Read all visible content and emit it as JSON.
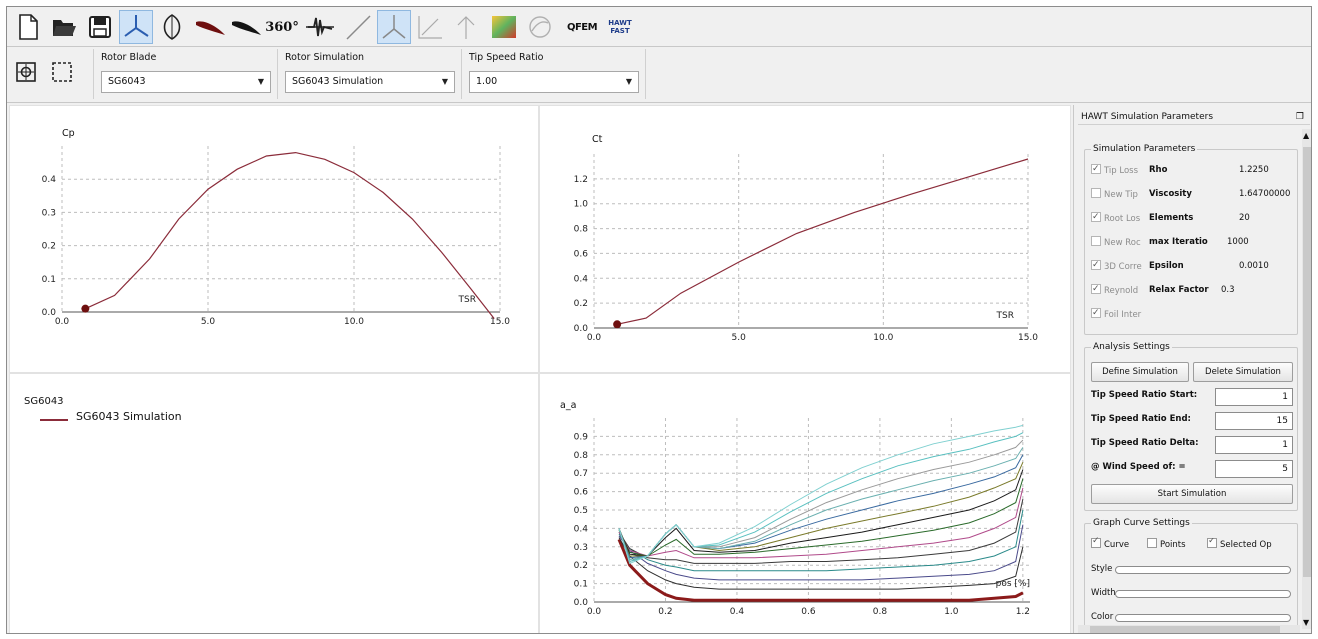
{
  "toolbar": {
    "text_360": "360°",
    "qfem_label": "QFEM",
    "hawt_fast_label": "HAWT FAST"
  },
  "selectors": {
    "rotor_blade": {
      "label": "Rotor Blade",
      "value": "SG6043"
    },
    "rotor_simulation": {
      "label": "Rotor Simulation",
      "value": "SG6043 Simulation"
    },
    "tip_speed_ratio": {
      "label": "Tip Speed Ratio",
      "value": "1.00"
    }
  },
  "graphs": {
    "cp": {
      "title": "Cp",
      "xlabel": "TSR"
    },
    "ct": {
      "title": "Ct",
      "xlabel": "TSR"
    },
    "legend": {
      "blade": "SG6043",
      "simulation": "SG6043 Simulation"
    },
    "aa": {
      "title": "a_a",
      "xlabel": "pos [%]"
    }
  },
  "chart_data": [
    {
      "type": "line",
      "title": "Cp",
      "xlabel": "TSR",
      "ylabel": "",
      "xlim": [
        0,
        15
      ],
      "ylim": [
        0,
        0.5
      ],
      "xticks": [
        "0.0",
        "5.0",
        "10.0",
        "15.0"
      ],
      "yticks": [
        "0.0",
        "0.1",
        "0.2",
        "0.3",
        "0.4"
      ],
      "series": [
        {
          "name": "SG6043 Simulation",
          "color": "#8b2c3a",
          "x": [
            0.8,
            1.8,
            3.0,
            4.0,
            5.0,
            6.0,
            7.0,
            8.0,
            9.0,
            10.0,
            11.0,
            12.0,
            13.0,
            14.0,
            14.8
          ],
          "y": [
            0.01,
            0.05,
            0.16,
            0.28,
            0.37,
            0.43,
            0.47,
            0.48,
            0.46,
            0.42,
            0.36,
            0.28,
            0.18,
            0.07,
            -0.02
          ]
        }
      ],
      "marker": {
        "x": 0.8,
        "y": 0.01
      }
    },
    {
      "type": "line",
      "title": "Ct",
      "xlabel": "TSR",
      "ylabel": "",
      "xlim": [
        0,
        15
      ],
      "ylim": [
        0,
        1.4
      ],
      "xticks": [
        "0.0",
        "5.0",
        "10.0",
        "15.0"
      ],
      "yticks": [
        "0.0",
        "0.2",
        "0.4",
        "0.6",
        "0.8",
        "1.0",
        "1.2"
      ],
      "series": [
        {
          "name": "SG6043 Simulation",
          "color": "#8b2c3a",
          "x": [
            0.8,
            1.8,
            3.0,
            5.0,
            7.0,
            9.0,
            11.0,
            13.0,
            15.0
          ],
          "y": [
            0.03,
            0.08,
            0.28,
            0.53,
            0.76,
            0.93,
            1.08,
            1.22,
            1.36
          ]
        }
      ],
      "marker": {
        "x": 0.8,
        "y": 0.03
      }
    },
    {
      "type": "line",
      "title": "a_a",
      "xlabel": "pos [%]",
      "ylabel": "",
      "xlim": [
        0,
        1.22
      ],
      "ylim": [
        0,
        1.0
      ],
      "xticks": [
        "0.0",
        "0.2",
        "0.4",
        "0.6",
        "0.8",
        "1.0",
        "1.2"
      ],
      "yticks": [
        "0.0",
        "0.1",
        "0.2",
        "0.3",
        "0.4",
        "0.5",
        "0.6",
        "0.7",
        "0.8",
        "0.9"
      ],
      "x": [
        0.07,
        0.1,
        0.15,
        0.2,
        0.23,
        0.28,
        0.35,
        0.45,
        0.55,
        0.65,
        0.75,
        0.85,
        0.95,
        1.05,
        1.12,
        1.18,
        1.2
      ],
      "series": [
        {
          "color": "#8b1a1a",
          "values": [
            0.34,
            0.2,
            0.1,
            0.04,
            0.02,
            0.01,
            0.01,
            0.01,
            0.01,
            0.01,
            0.01,
            0.01,
            0.01,
            0.01,
            0.02,
            0.03,
            0.05
          ]
        },
        {
          "color": "#2e2e2e",
          "values": [
            0.35,
            0.25,
            0.17,
            0.12,
            0.1,
            0.08,
            0.07,
            0.07,
            0.07,
            0.07,
            0.07,
            0.07,
            0.08,
            0.09,
            0.1,
            0.14,
            0.3
          ]
        },
        {
          "color": "#4a4a8a",
          "values": [
            0.36,
            0.28,
            0.21,
            0.17,
            0.15,
            0.13,
            0.12,
            0.12,
            0.12,
            0.12,
            0.12,
            0.13,
            0.14,
            0.15,
            0.17,
            0.22,
            0.42
          ]
        },
        {
          "color": "#2a8a8a",
          "values": [
            0.37,
            0.29,
            0.23,
            0.2,
            0.19,
            0.17,
            0.17,
            0.17,
            0.17,
            0.17,
            0.18,
            0.19,
            0.2,
            0.22,
            0.25,
            0.3,
            0.5
          ]
        },
        {
          "color": "#3a3a3a",
          "values": [
            0.38,
            0.29,
            0.24,
            0.23,
            0.23,
            0.21,
            0.21,
            0.21,
            0.22,
            0.22,
            0.23,
            0.24,
            0.26,
            0.28,
            0.32,
            0.38,
            0.56
          ]
        },
        {
          "color": "#b04a8a",
          "values": [
            0.38,
            0.28,
            0.25,
            0.27,
            0.28,
            0.24,
            0.24,
            0.24,
            0.25,
            0.26,
            0.28,
            0.3,
            0.32,
            0.35,
            0.4,
            0.46,
            0.62
          ]
        },
        {
          "color": "#2a6a2a",
          "values": [
            0.39,
            0.27,
            0.25,
            0.31,
            0.34,
            0.26,
            0.26,
            0.27,
            0.29,
            0.31,
            0.33,
            0.36,
            0.39,
            0.43,
            0.48,
            0.54,
            0.67
          ]
        },
        {
          "color": "#1a1a1a",
          "values": [
            0.4,
            0.26,
            0.25,
            0.35,
            0.4,
            0.28,
            0.27,
            0.28,
            0.32,
            0.35,
            0.38,
            0.42,
            0.46,
            0.5,
            0.55,
            0.61,
            0.72
          ]
        },
        {
          "color": "#7a7a2a",
          "values": [
            0.4,
            0.25,
            0.25,
            0.37,
            0.42,
            0.3,
            0.28,
            0.3,
            0.35,
            0.4,
            0.44,
            0.48,
            0.52,
            0.57,
            0.62,
            0.67,
            0.76
          ]
        },
        {
          "color": "#3a6aa0",
          "values": [
            0.4,
            0.24,
            0.25,
            0.37,
            0.42,
            0.3,
            0.29,
            0.32,
            0.39,
            0.45,
            0.5,
            0.55,
            0.59,
            0.64,
            0.68,
            0.73,
            0.8
          ]
        },
        {
          "color": "#6ab0b0",
          "values": [
            0.4,
            0.23,
            0.25,
            0.37,
            0.42,
            0.3,
            0.29,
            0.33,
            0.42,
            0.5,
            0.56,
            0.61,
            0.66,
            0.7,
            0.74,
            0.78,
            0.84
          ]
        },
        {
          "color": "#9a9a9a",
          "values": [
            0.4,
            0.22,
            0.25,
            0.37,
            0.42,
            0.3,
            0.3,
            0.35,
            0.45,
            0.54,
            0.61,
            0.67,
            0.72,
            0.76,
            0.8,
            0.84,
            0.88
          ]
        },
        {
          "color": "#5ac0c0",
          "values": [
            0.4,
            0.22,
            0.25,
            0.37,
            0.42,
            0.3,
            0.31,
            0.38,
            0.49,
            0.59,
            0.67,
            0.74,
            0.79,
            0.83,
            0.87,
            0.9,
            0.92
          ]
        },
        {
          "color": "#80d0d0",
          "values": [
            0.4,
            0.21,
            0.25,
            0.37,
            0.42,
            0.3,
            0.32,
            0.41,
            0.53,
            0.64,
            0.73,
            0.8,
            0.86,
            0.9,
            0.93,
            0.95,
            0.96
          ]
        }
      ]
    }
  ],
  "dock": {
    "title": "HAWT Simulation Parameters",
    "sim_params": {
      "title": "Simulation Parameters",
      "checks": [
        "Tip Loss",
        "New Tip",
        "Root Los",
        "New Roc",
        "3D Corre",
        "Reynold",
        "Foil Inter"
      ],
      "params": [
        {
          "name": "Rho",
          "value": "1.2250"
        },
        {
          "name": "Viscosity",
          "value": "1.64700000"
        },
        {
          "name": "Elements",
          "value": "20"
        },
        {
          "name": "max Iteratio",
          "value": "1000"
        },
        {
          "name": "Epsilon",
          "value": "0.0010"
        },
        {
          "name": "Relax Factor",
          "value": "0.3"
        }
      ]
    },
    "analysis": {
      "title": "Analysis Settings",
      "define_button": "Define Simulation",
      "delete_button": "Delete Simulation",
      "fields": [
        {
          "label": "Tip Speed Ratio Start:",
          "value": "1"
        },
        {
          "label": "Tip Speed Ratio End:",
          "value": "15"
        },
        {
          "label": "Tip Speed Ratio Delta:",
          "value": "1"
        },
        {
          "label": "@ Wind Speed of: =",
          "value": "5"
        }
      ],
      "start_button": "Start Simulation"
    },
    "curve": {
      "title": "Graph Curve Settings",
      "curve_label": "Curve",
      "points_label": "Points",
      "selected_label": "Selected Op",
      "style_label": "Style",
      "width_label": "Width",
      "color_label": "Color"
    }
  }
}
